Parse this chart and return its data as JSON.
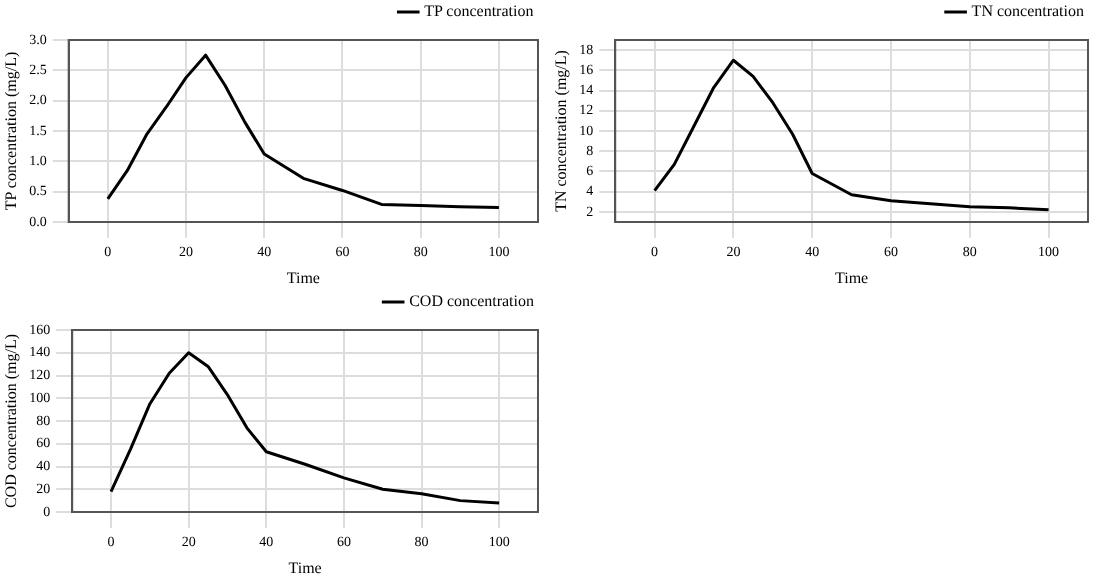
{
  "chart_data": [
    {
      "type": "line",
      "xlabel": "Time",
      "ylabel": "TP concentration (mg/L)",
      "x": [
        0,
        5,
        10,
        15,
        20,
        25,
        30,
        35,
        40,
        50,
        60,
        70,
        80,
        90,
        100
      ],
      "series": [
        {
          "name": "TP concentration",
          "color": "#000000",
          "values": [
            0.38,
            0.85,
            1.45,
            1.9,
            2.38,
            2.75,
            2.25,
            1.65,
            1.12,
            0.72,
            0.52,
            0.29,
            0.27,
            0.25,
            0.24
          ]
        }
      ],
      "xlim": [
        -10,
        110
      ],
      "xticks": [
        0,
        20,
        40,
        60,
        80,
        100
      ],
      "ylim": [
        0,
        3
      ],
      "yticks": [
        {
          "value": 0,
          "label": "0.0"
        },
        {
          "value": 0.5,
          "label": "0.5"
        },
        {
          "value": 1,
          "label": "1.0"
        },
        {
          "value": 1.5,
          "label": "1.5"
        },
        {
          "value": 2,
          "label": "2.0"
        },
        {
          "value": 2.5,
          "label": "2.5"
        },
        {
          "value": 3,
          "label": "3.0"
        }
      ],
      "grid": true,
      "legend": "top right",
      "marker": "none",
      "line_style": "solid"
    },
    {
      "type": "line",
      "xlabel": "Time",
      "ylabel": "TN concentration (mg/L)",
      "x": [
        0,
        5,
        10,
        15,
        20,
        25,
        30,
        35,
        40,
        50,
        60,
        70,
        80,
        90,
        100
      ],
      "series": [
        {
          "name": "TN concentration",
          "color": "#000000",
          "values": [
            4.1,
            6.7,
            10.5,
            14.3,
            17,
            15.4,
            12.8,
            9.7,
            5.8,
            3.7,
            3.1,
            2.8,
            2.5,
            2.4,
            2.2
          ]
        }
      ],
      "xlim": [
        -10,
        110
      ],
      "xticks": [
        0,
        20,
        40,
        60,
        80,
        100
      ],
      "ylim": [
        1,
        19
      ],
      "yticks": [
        2,
        4,
        6,
        8,
        10,
        12,
        14,
        16,
        18
      ],
      "grid": true,
      "legend": "top right",
      "marker": "none",
      "line_style": "solid"
    },
    {
      "type": "line",
      "xlabel": "Time",
      "ylabel": "COD concentration (mg/L)",
      "x": [
        0,
        5,
        10,
        15,
        20,
        25,
        30,
        35,
        40,
        50,
        60,
        70,
        80,
        90,
        100
      ],
      "series": [
        {
          "name": "COD concentration",
          "color": "#000000",
          "values": [
            18,
            55,
            95,
            122,
            140,
            128,
            103,
            74,
            53,
            42,
            30,
            20,
            16,
            10,
            8
          ]
        }
      ],
      "xlim": [
        -10,
        110
      ],
      "xticks": [
        0,
        20,
        40,
        60,
        80,
        100
      ],
      "ylim": [
        0,
        160
      ],
      "yticks": [
        0,
        20,
        40,
        60,
        80,
        100,
        120,
        140,
        160
      ],
      "grid": true,
      "legend": "top right",
      "marker": "none",
      "line_style": "solid"
    }
  ]
}
